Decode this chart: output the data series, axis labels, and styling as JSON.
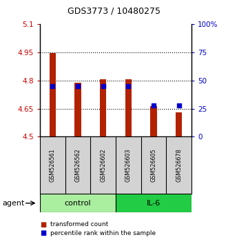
{
  "title": "GDS3773 / 10480275",
  "samples": [
    "GSM526561",
    "GSM526562",
    "GSM526602",
    "GSM526603",
    "GSM526605",
    "GSM526678"
  ],
  "groups": [
    "control",
    "control",
    "control",
    "IL-6",
    "IL-6",
    "IL-6"
  ],
  "transformed_counts": [
    4.947,
    4.79,
    4.808,
    4.808,
    4.663,
    4.63
  ],
  "percentile_ranks": [
    45,
    45,
    45,
    45,
    28,
    28
  ],
  "ylim": [
    4.5,
    5.1
  ],
  "y_ticks": [
    4.5,
    4.65,
    4.8,
    4.95,
    5.1
  ],
  "y_ticklabels": [
    "4.5",
    "4.65",
    "4.8",
    "4.95",
    "5.1"
  ],
  "right_ticks": [
    0,
    25,
    50,
    75,
    100
  ],
  "right_ticklabels": [
    "0",
    "25",
    "50",
    "75",
    "100%"
  ],
  "bar_color": "#b22200",
  "dot_color": "#0000cc",
  "control_color": "#aaeea0",
  "il6_color": "#22cc44",
  "bar_bottom": 4.5,
  "bar_width": 0.25
}
